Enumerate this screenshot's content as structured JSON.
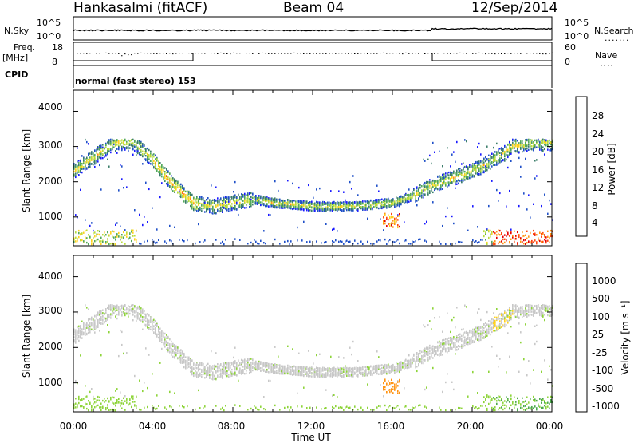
{
  "header": {
    "station": "Hankasalmi (fitACF)",
    "beam": "Beam 04",
    "date": "12/Sep/2014"
  },
  "status_panel": {
    "nsky_label": "N.Sky",
    "nsky_ticks": [
      "10^5",
      "10^0"
    ],
    "nsearch_label": "N.Search",
    "nsearch_ticks": [
      "10^5",
      "10^0"
    ],
    "freq_label_line1": "Freq.",
    "freq_label_line2": "[MHz]",
    "freq_ticks": [
      "18",
      "8"
    ],
    "nave_label": "Nave",
    "nave_ticks": [
      "60",
      "0"
    ],
    "cpid_label": "CPID",
    "cpid_value": "normal (fast stereo) 153"
  },
  "chart_data": [
    {
      "type": "heatmap",
      "name": "power",
      "ylabel": "Slant Range [km]",
      "xlabel": "",
      "yticks": [
        "4000",
        "3000",
        "2000",
        "1000"
      ],
      "ylim": [
        180,
        4600
      ],
      "xlim": [
        0,
        24
      ],
      "colorbar_label": "Power [dB]",
      "colorbar_ticks": [
        "28",
        "24",
        "20",
        "16",
        "12",
        "8",
        "4"
      ],
      "colorbar_colors": [
        "#1a1aff",
        "#2050c8",
        "#3b7d6a",
        "#52a85a",
        "#b8dc3c",
        "#ffd21e",
        "#ff9414",
        "#ff4a10",
        "#e60000"
      ],
      "features": [
        {
          "desc": "main ionospheric band",
          "t": [
            0,
            1,
            2,
            3,
            4,
            5,
            6,
            7,
            8,
            9,
            10,
            12,
            14,
            16,
            17,
            18,
            19,
            20,
            21,
            22,
            23
          ],
          "range": [
            2300,
            2700,
            3100,
            3100,
            2600,
            1900,
            1400,
            1300,
            1400,
            1500,
            1400,
            1300,
            1300,
            1400,
            1600,
            1900,
            2100,
            2300,
            2600,
            3000,
            3100
          ]
        },
        {
          "desc": "near-range ground echoes",
          "t_start": 20.5,
          "t_end": 24,
          "range_km": 300,
          "power_db": 28
        }
      ]
    },
    {
      "type": "heatmap",
      "name": "velocity",
      "ylabel": "Slant Range [km]",
      "xlabel": "Time UT",
      "yticks": [
        "4000",
        "3000",
        "2000",
        "1000"
      ],
      "xticks": [
        "00:00",
        "04:00",
        "08:00",
        "12:00",
        "16:00",
        "20:00",
        "00:00"
      ],
      "ylim": [
        180,
        4600
      ],
      "xlim": [
        0,
        24
      ],
      "colorbar_label": "Velocity [m s⁻¹]",
      "colorbar_ticks": [
        "1000",
        "500",
        "100",
        "25",
        "-25",
        "-100",
        "-500",
        "-1000"
      ],
      "colorbar_colors": [
        "#2040c0",
        "#2a8a6a",
        "#4aa84a",
        "#8ed43a",
        "#c8c8c8",
        "#ffd21e",
        "#ff9414",
        "#ff5010",
        "#e60000"
      ]
    }
  ]
}
